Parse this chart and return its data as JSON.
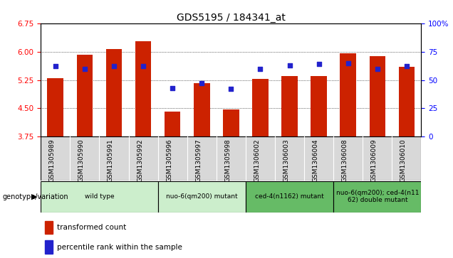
{
  "title": "GDS5195 / 184341_at",
  "samples": [
    "GSM1305989",
    "GSM1305990",
    "GSM1305991",
    "GSM1305992",
    "GSM1305996",
    "GSM1305997",
    "GSM1305998",
    "GSM1306002",
    "GSM1306003",
    "GSM1306004",
    "GSM1306008",
    "GSM1306009",
    "GSM1306010"
  ],
  "red_values": [
    5.3,
    5.92,
    6.07,
    6.27,
    4.42,
    5.17,
    4.47,
    5.28,
    5.35,
    5.35,
    5.95,
    5.88,
    5.6
  ],
  "blue_values": [
    62,
    60,
    62,
    62,
    43,
    47,
    42,
    60,
    63,
    64,
    65,
    60,
    62
  ],
  "ylim_left": [
    3.75,
    6.75
  ],
  "ylim_right": [
    0,
    100
  ],
  "yticks_left": [
    3.75,
    4.5,
    5.25,
    6.0,
    6.75
  ],
  "yticks_right": [
    0,
    25,
    50,
    75,
    100
  ],
  "group_labels": [
    "wild type",
    "nuo-6(qm200) mutant",
    "ced-4(n1162) mutant",
    "nuo-6(qm200); ced-4(n11\n62) double mutant"
  ],
  "group_ranges": [
    [
      0,
      3
    ],
    [
      4,
      6
    ],
    [
      7,
      9
    ],
    [
      10,
      12
    ]
  ],
  "group_bg_colors": [
    "#cceecc",
    "#cceecc",
    "#66bb66",
    "#66bb66"
  ],
  "legend_red": "transformed count",
  "legend_blue": "percentile rank within the sample",
  "bar_color": "#cc2200",
  "blue_color": "#2222cc",
  "bar_width": 0.55
}
